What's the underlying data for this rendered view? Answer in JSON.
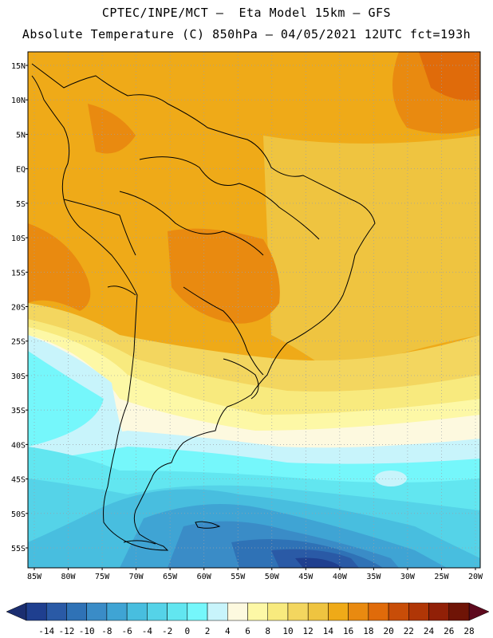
{
  "title_line1": "CPTEC/INPE/MCT –  Eta Model 15km – GFS",
  "title_line2": "Absolute Temperature (C) 850hPa – 04/05/2021 12UTC fct=193h",
  "lat_labels": [
    "15N",
    "10N",
    "5N",
    "EQ",
    "5S",
    "10S",
    "15S",
    "20S",
    "25S",
    "30S",
    "35S",
    "40S",
    "45S",
    "50S",
    "55S"
  ],
  "lon_labels": [
    "85W",
    "80W",
    "75W",
    "70W",
    "65W",
    "60W",
    "55W",
    "50W",
    "45W",
    "40W",
    "35W",
    "30W",
    "25W",
    "20W"
  ],
  "colorbar": {
    "ticks": [
      "-14",
      "-12",
      "-10",
      "-8",
      "-6",
      "-4",
      "-2",
      "0",
      "2",
      "4",
      "6",
      "8",
      "10",
      "12",
      "14",
      "16",
      "18",
      "20",
      "22",
      "24",
      "26",
      "28"
    ],
    "colors": [
      "#1f3f8f",
      "#2a5aa6",
      "#2f72b6",
      "#3a8cc7",
      "#3fa4d4",
      "#48bedf",
      "#55d3e8",
      "#62e6f0",
      "#75f7fb",
      "#c8f4fb",
      "#fdf9df",
      "#fdf8a6",
      "#f8ea7e",
      "#f3d65f",
      "#efc440",
      "#efaa18",
      "#e98a10",
      "#e06b0a",
      "#c84d08",
      "#b03606",
      "#912007",
      "#6f1406"
    ],
    "left_arrow": "#1b2e70",
    "right_arrow": "#5e0a1e"
  },
  "legend_levels": {
    "lat_grid": [
      15,
      10,
      5,
      0,
      -5,
      -10,
      -15,
      -20,
      -25,
      -30,
      -35,
      -40,
      -45,
      -50,
      -55
    ],
    "lon_grid": [
      -85,
      -80,
      -75,
      -70,
      -65,
      -60,
      -55,
      -50,
      -45,
      -40,
      -35,
      -30,
      -25,
      -20
    ]
  }
}
